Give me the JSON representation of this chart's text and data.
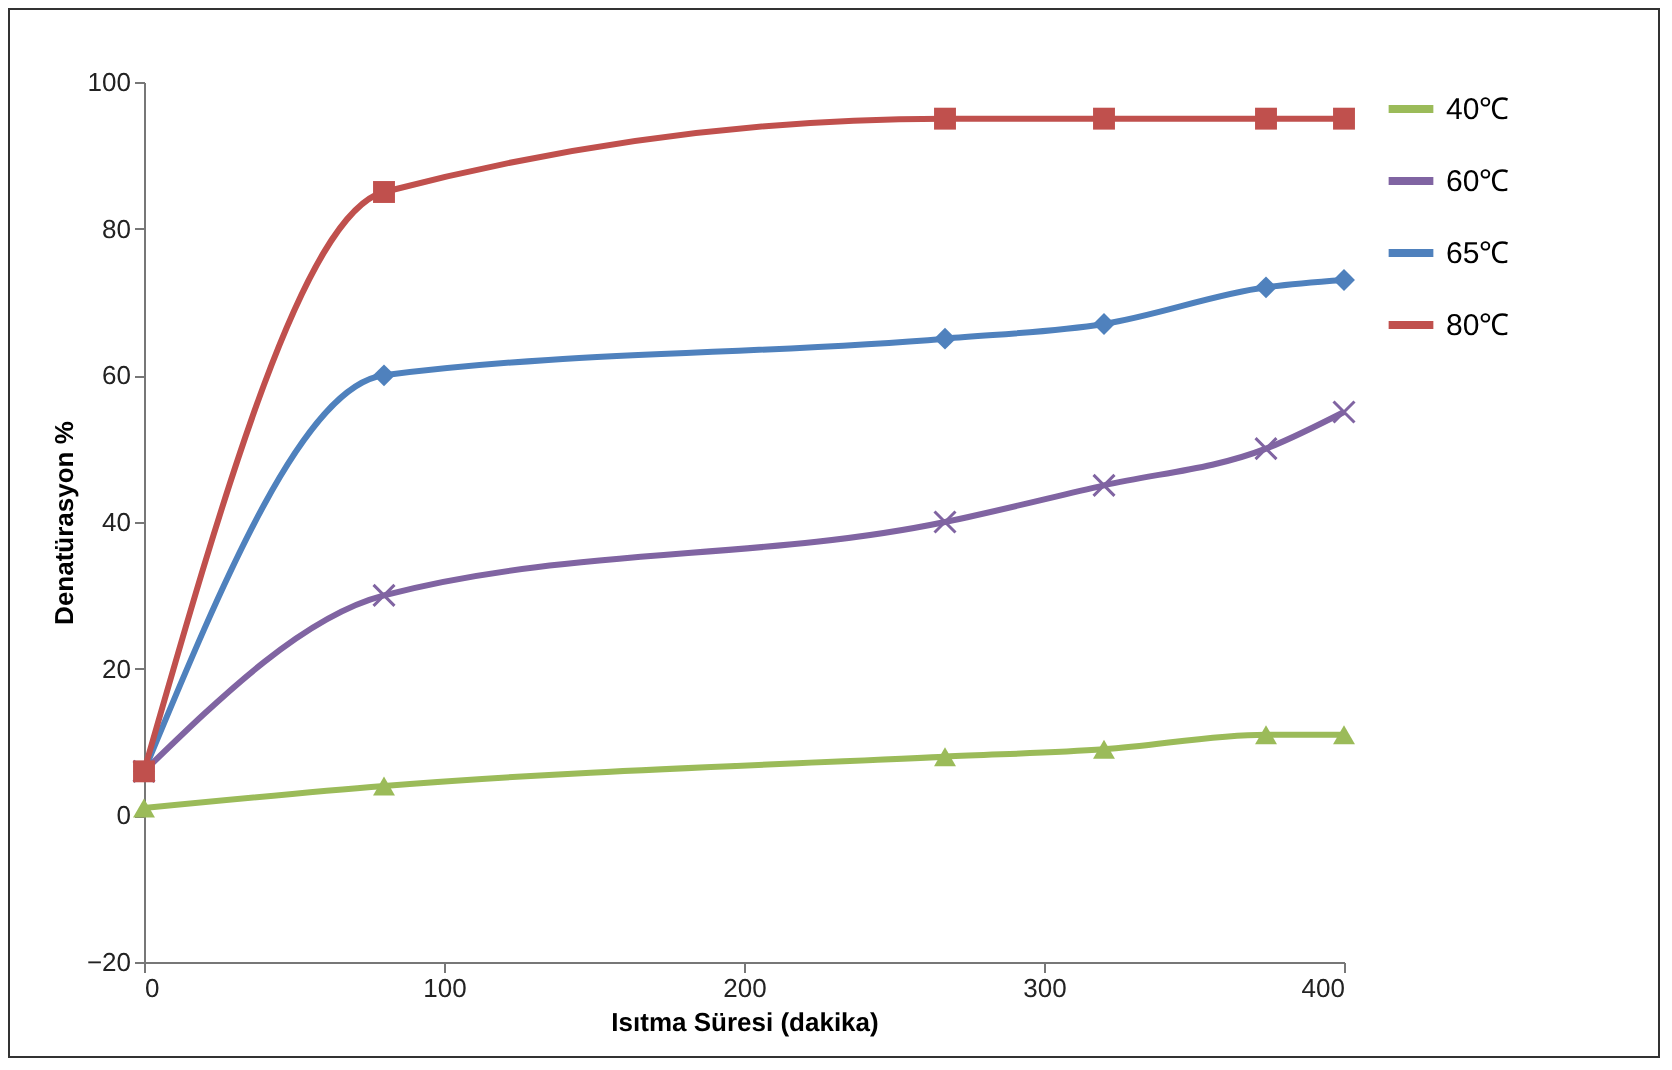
{
  "chart_data": {
    "type": "line",
    "xlabel": "Isıtma Süresi (dakika)",
    "ylabel": "Denatürasyon %",
    "x": [
      0,
      80,
      267,
      320,
      374,
      400
    ],
    "series": [
      {
        "name": "40℃",
        "color": "#9bbb59",
        "marker": "triangle",
        "values": [
          1,
          4,
          8,
          9,
          11,
          11
        ]
      },
      {
        "name": "60℃",
        "color": "#8064a2",
        "marker": "cross",
        "values": [
          6,
          30,
          40,
          45,
          50,
          55
        ]
      },
      {
        "name": "65℃",
        "color": "#4f81bd",
        "marker": "diamond",
        "values": [
          6,
          60,
          65,
          67,
          72,
          73
        ]
      },
      {
        "name": "80℃",
        "color": "#c0504d",
        "marker": "square",
        "values": [
          6,
          85,
          95,
          95,
          95,
          95
        ]
      }
    ],
    "xlim": [
      0,
      400
    ],
    "xticks": [
      0,
      100,
      200,
      300,
      400
    ],
    "ylim": [
      -20,
      100
    ],
    "yticks": [
      -20,
      0,
      20,
      40,
      60,
      80,
      100
    ],
    "grid": false,
    "legend": "right"
  }
}
